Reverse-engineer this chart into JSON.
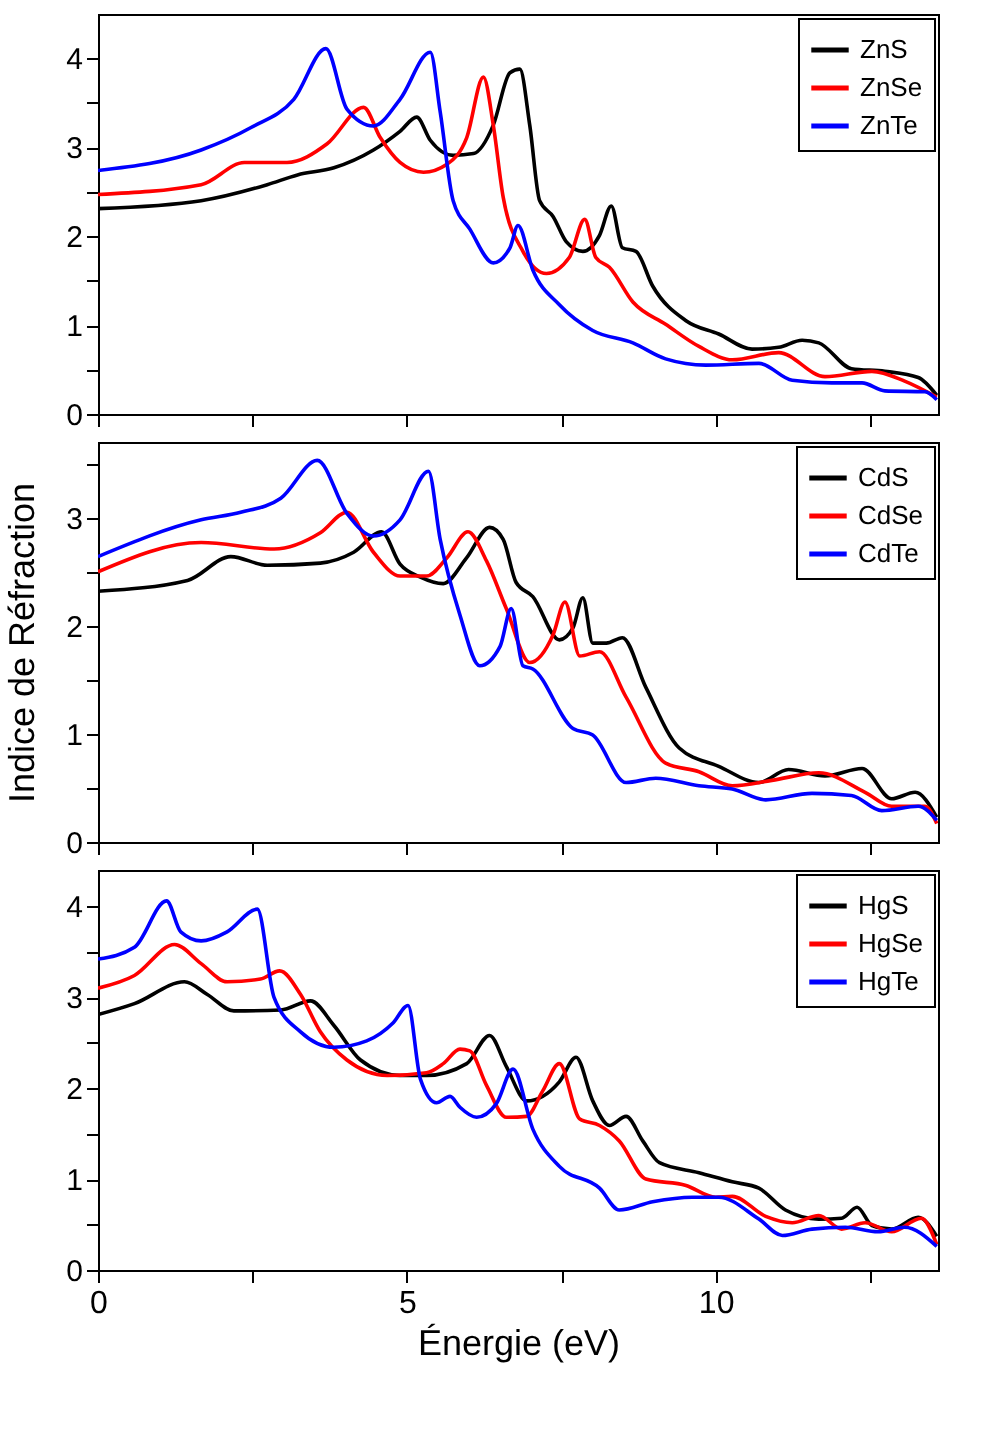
{
  "chart_data": [
    {
      "type": "line",
      "xlim": [
        0,
        13.6
      ],
      "xticks": [
        0,
        {
          "value": 2.5,
          "label": null
        },
        5,
        {
          "value": 7.5,
          "label": null
        },
        10,
        {
          "value": 12.5,
          "label": null
        }
      ],
      "ylim": [
        0,
        4.5
      ],
      "yticks": [
        0,
        {
          "value": 0.5,
          "label": null
        },
        1,
        {
          "value": 1.5,
          "label": null
        },
        2,
        {
          "value": 2.5,
          "label": null
        },
        3,
        {
          "value": 3.5,
          "label": null
        },
        4
      ],
      "tick_labels": "y",
      "grid": false,
      "legend": "top right",
      "marker": "none",
      "line_style": "solid",
      "series": [
        {
          "name": "ZnS",
          "color": "#000000",
          "x": [
            0,
            1.67,
            2.74,
            3.23,
            3.82,
            4.46,
            4.89,
            5.16,
            5.38,
            5.75,
            6.08,
            6.4,
            6.67,
            6.83,
            6.99,
            7.15,
            7.37,
            7.58,
            7.85,
            8.12,
            8.31,
            8.49,
            8.71,
            8.98,
            9.52,
            10.05,
            10.59,
            11.02,
            11.4,
            11.67,
            12.2,
            12.74,
            13.28,
            13.58
          ],
          "values": [
            2.31,
            2.4,
            2.58,
            2.69,
            2.77,
            2.97,
            3.18,
            3.34,
            3.08,
            2.91,
            2.93,
            3.25,
            3.84,
            3.88,
            3.25,
            2.4,
            2.22,
            1.94,
            1.83,
            2.01,
            2.34,
            1.87,
            1.83,
            1.44,
            1.05,
            0.9,
            0.73,
            0.75,
            0.83,
            0.8,
            0.51,
            0.48,
            0.41,
            0.21
          ]
        },
        {
          "name": "ZnSe",
          "color": "#ff0000",
          "x": [
            0,
            1.67,
            2.37,
            3.06,
            3.71,
            4.3,
            4.57,
            4.89,
            5.27,
            5.65,
            5.97,
            6.24,
            6.4,
            6.56,
            6.88,
            7.26,
            7.63,
            7.88,
            8.06,
            8.28,
            8.66,
            9.19,
            9.73,
            10.27,
            11.02,
            11.77,
            12.53,
            13.06,
            13.58
          ],
          "values": [
            2.47,
            2.58,
            2.83,
            2.83,
            3.04,
            3.45,
            3.11,
            2.83,
            2.72,
            2.81,
            3.11,
            3.79,
            3.25,
            2.44,
            1.83,
            1.58,
            1.76,
            2.19,
            1.76,
            1.65,
            1.26,
            1.01,
            0.76,
            0.61,
            0.69,
            0.42,
            0.48,
            0.37,
            0.19
          ]
        },
        {
          "name": "ZnTe",
          "color": "#0000ff",
          "x": [
            0,
            1.67,
            2.47,
            3.17,
            3.69,
            4.03,
            4.46,
            4.89,
            5.38,
            5.54,
            5.75,
            6.02,
            6.4,
            6.67,
            6.8,
            7.04,
            7.47,
            8.01,
            8.66,
            9.19,
            9.84,
            10.7,
            11.24,
            11.88,
            12.37,
            12.74,
            13.39,
            13.58
          ],
          "values": [
            2.74,
            2.97,
            3.22,
            3.54,
            4.11,
            3.43,
            3.24,
            3.54,
            4.07,
            3.4,
            2.4,
            2.08,
            1.7,
            1.87,
            2.12,
            1.62,
            1.23,
            0.94,
            0.8,
            0.62,
            0.55,
            0.57,
            0.38,
            0.35,
            0.35,
            0.26,
            0.25,
            0.16
          ]
        }
      ]
    },
    {
      "type": "line",
      "ylabel": "Indice de Réfraction",
      "xlim": [
        0,
        13.6
      ],
      "xticks": [
        0,
        {
          "value": 2.5,
          "label": null
        },
        5,
        {
          "value": 7.5,
          "label": null
        },
        10,
        {
          "value": 12.5,
          "label": null
        }
      ],
      "ylim": [
        0,
        3.7
      ],
      "yticks": [
        0,
        {
          "value": 0.5,
          "label": null
        },
        1,
        {
          "value": 1.5,
          "label": null
        },
        2,
        {
          "value": 2.5,
          "label": null
        },
        3,
        {
          "value": 3.5,
          "label": null
        }
      ],
      "tick_labels": "y",
      "grid": false,
      "legend": "top right",
      "marker": "none",
      "line_style": "solid",
      "series": [
        {
          "name": "CdS",
          "color": "#000000",
          "x": [
            0,
            1.45,
            2.15,
            2.74,
            3.6,
            4.14,
            4.59,
            4.89,
            5.22,
            5.59,
            5.97,
            6.34,
            6.56,
            6.77,
            7.04,
            7.47,
            7.69,
            7.85,
            8.01,
            8.23,
            8.49,
            8.87,
            9.41,
            10.05,
            10.7,
            11.18,
            11.77,
            12.37,
            12.85,
            13.23,
            13.58
          ],
          "values": [
            2.32,
            2.42,
            2.64,
            2.56,
            2.58,
            2.68,
            2.87,
            2.57,
            2.45,
            2.39,
            2.63,
            2.91,
            2.8,
            2.4,
            2.27,
            1.87,
            1.98,
            2.26,
            1.84,
            1.84,
            1.89,
            1.43,
            0.87,
            0.7,
            0.55,
            0.67,
            0.61,
            0.68,
            0.4,
            0.46,
            0.23
          ]
        },
        {
          "name": "CdSe",
          "color": "#ff0000",
          "x": [
            0,
            1.67,
            2.85,
            3.6,
            4.03,
            4.46,
            4.89,
            5.32,
            5.65,
            5.99,
            6.29,
            6.61,
            6.99,
            7.37,
            7.56,
            7.8,
            8.12,
            8.55,
            9.19,
            9.73,
            10.27,
            10.91,
            11.67,
            12.42,
            12.85,
            13.39,
            13.58
          ],
          "values": [
            2.5,
            2.77,
            2.71,
            2.86,
            3.05,
            2.68,
            2.46,
            2.46,
            2.63,
            2.87,
            2.6,
            2.16,
            1.66,
            1.92,
            2.22,
            1.72,
            1.76,
            1.34,
            0.73,
            0.65,
            0.52,
            0.57,
            0.64,
            0.46,
            0.33,
            0.33,
            0.17
          ]
        },
        {
          "name": "CdTe",
          "color": "#0000ff",
          "x": [
            0,
            1.67,
            2.31,
            2.96,
            3.55,
            4.03,
            4.46,
            4.89,
            5.35,
            5.54,
            5.86,
            6.18,
            6.51,
            6.69,
            6.88,
            7.04,
            7.69,
            8.01,
            8.55,
            9.03,
            9.73,
            10.27,
            10.81,
            11.56,
            12.2,
            12.69,
            13.28,
            13.58
          ],
          "values": [
            2.64,
            2.98,
            3.05,
            3.18,
            3.53,
            3.04,
            2.83,
            2.98,
            3.43,
            2.8,
            2.1,
            1.63,
            1.81,
            2.16,
            1.63,
            1.6,
            1.05,
            0.99,
            0.55,
            0.59,
            0.52,
            0.49,
            0.39,
            0.45,
            0.43,
            0.29,
            0.33,
            0.2
          ]
        }
      ]
    },
    {
      "type": "line",
      "xlabel": "Énergie (eV)",
      "xlim": [
        0,
        13.6
      ],
      "xticks": [
        0,
        {
          "value": 2.5,
          "label": null
        },
        5,
        {
          "value": 7.5,
          "label": null
        },
        10,
        {
          "value": 12.5,
          "label": null
        }
      ],
      "ylim": [
        0,
        4.4
      ],
      "yticks": [
        0,
        {
          "value": 0.5,
          "label": null
        },
        1,
        {
          "value": 1.5,
          "label": null
        },
        2,
        {
          "value": 2.5,
          "label": null
        },
        3,
        {
          "value": 3.5,
          "label": null
        },
        4
      ],
      "grid": false,
      "legend": "top right",
      "marker": "none",
      "line_style": "solid",
      "series": [
        {
          "name": "HgS",
          "color": "#000000",
          "x": [
            0,
            0.59,
            1.4,
            1.77,
            2.2,
            2.96,
            3.44,
            3.82,
            4.25,
            4.89,
            5.32,
            5.97,
            6.34,
            6.61,
            6.94,
            7.47,
            7.74,
            8.01,
            8.28,
            8.55,
            8.82,
            9.09,
            9.73,
            10.27,
            10.7,
            11.13,
            11.67,
            12.04,
            12.29,
            12.53,
            12.85,
            13.28,
            13.58
          ],
          "values": [
            2.81,
            2.93,
            3.17,
            3.03,
            2.85,
            2.86,
            2.96,
            2.69,
            2.31,
            2.14,
            2.14,
            2.27,
            2.58,
            2.24,
            1.86,
            2.07,
            2.34,
            1.86,
            1.59,
            1.69,
            1.42,
            1.18,
            1.07,
            0.97,
            0.9,
            0.66,
            0.56,
            0.57,
            0.69,
            0.49,
            0.45,
            0.58,
            0.37
          ]
        },
        {
          "name": "HgSe",
          "color": "#ff0000",
          "x": [
            0,
            0.59,
            1.24,
            1.67,
            2.09,
            2.63,
            2.94,
            3.28,
            3.6,
            4.03,
            4.68,
            5.32,
            5.59,
            5.86,
            6.02,
            6.29,
            6.61,
            6.94,
            7.2,
            7.47,
            7.8,
            8.12,
            8.44,
            8.87,
            9.52,
            10.0,
            10.27,
            10.81,
            11.24,
            11.67,
            12.04,
            12.42,
            12.85,
            13.33,
            13.58
          ],
          "values": [
            3.1,
            3.24,
            3.58,
            3.37,
            3.17,
            3.2,
            3.29,
            3.03,
            2.62,
            2.31,
            2.14,
            2.17,
            2.27,
            2.43,
            2.41,
            2.03,
            1.68,
            1.69,
            1.97,
            2.27,
            1.66,
            1.59,
            1.42,
            1.0,
            0.93,
            0.8,
            0.81,
            0.59,
            0.52,
            0.6,
            0.45,
            0.52,
            0.42,
            0.57,
            0.28
          ]
        },
        {
          "name": "HgTe",
          "color": "#0000ff",
          "x": [
            0,
            0.59,
            1.11,
            1.34,
            1.67,
            2.09,
            2.58,
            2.85,
            3.28,
            3.82,
            4.35,
            4.78,
            5.02,
            5.22,
            5.48,
            5.7,
            5.86,
            6.13,
            6.45,
            6.72,
            7.04,
            7.47,
            8.12,
            8.44,
            8.98,
            9.62,
            10.05,
            10.7,
            11.08,
            11.56,
            12.1,
            12.63,
            13.06,
            13.58
          ],
          "values": [
            3.42,
            3.55,
            4.06,
            3.72,
            3.62,
            3.72,
            3.97,
            3.0,
            2.62,
            2.45,
            2.52,
            2.72,
            2.91,
            2.1,
            1.84,
            1.91,
            1.79,
            1.68,
            1.83,
            2.21,
            1.55,
            1.14,
            0.9,
            0.66,
            0.75,
            0.8,
            0.8,
            0.56,
            0.38,
            0.45,
            0.47,
            0.42,
            0.47,
            0.26
          ]
        }
      ]
    }
  ]
}
